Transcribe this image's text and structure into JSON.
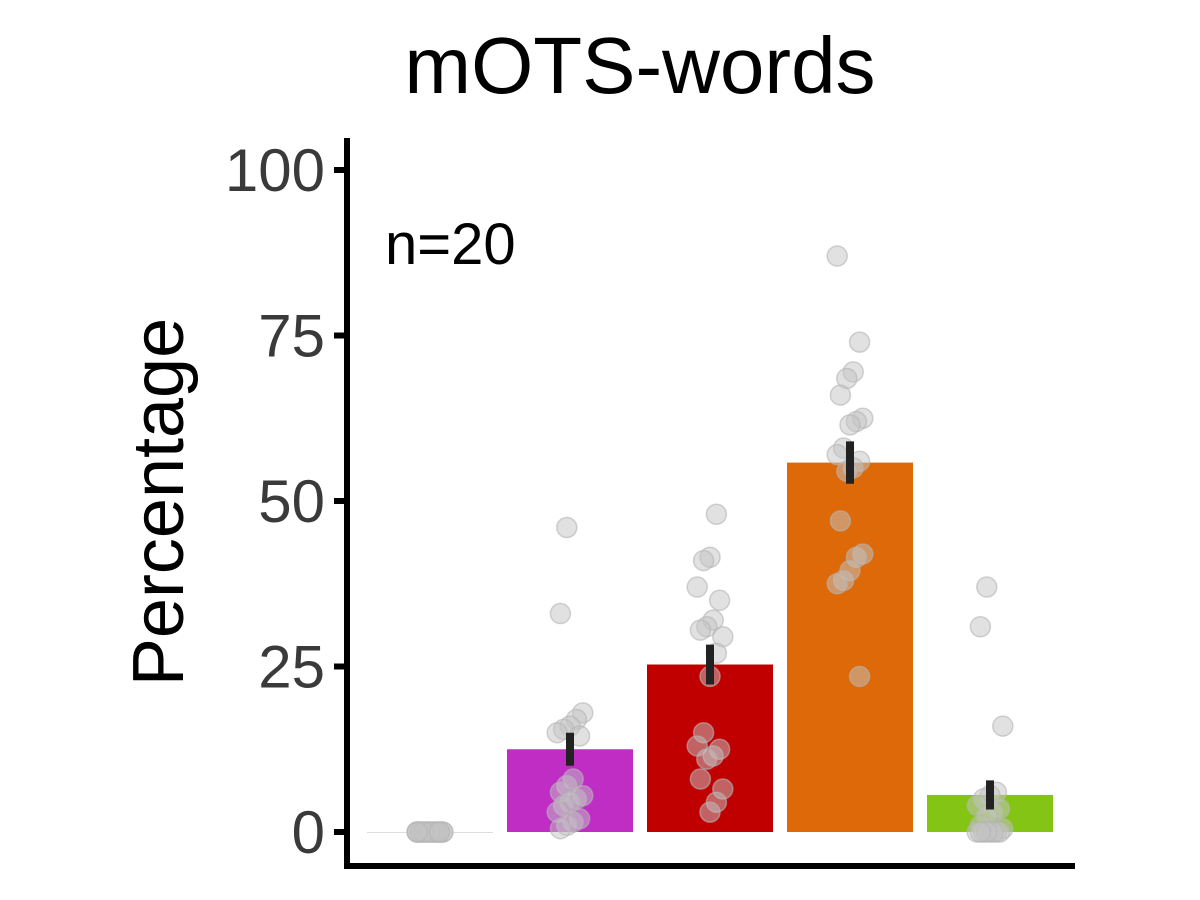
{
  "chart_data": {
    "type": "bar",
    "title": "mOTS-words",
    "ylabel": "Percentage",
    "xlabel": "",
    "ylim": [
      0,
      105
    ],
    "yticks": [
      0,
      25,
      50,
      75,
      100
    ],
    "annotation": "n=20",
    "grid": false,
    "bars": [
      {
        "value": 0,
        "error": 0,
        "color": "#c8c8c8",
        "points": [
          0,
          0,
          0,
          0,
          0,
          0,
          0,
          0,
          0,
          0,
          0,
          0,
          0,
          0,
          0,
          0,
          0,
          0,
          0,
          0
        ]
      },
      {
        "value": 12.5,
        "error": 2.5,
        "color": "#bf2dc4",
        "points": [
          46,
          33,
          18,
          17,
          16,
          15.5,
          15,
          14.5,
          8,
          7,
          6,
          5.5,
          5,
          4.5,
          4,
          3,
          2,
          1.5,
          1,
          0.5
        ]
      },
      {
        "value": 25.3,
        "error": 3.0,
        "color": "#c00000",
        "points": [
          48,
          41.5,
          41,
          37,
          35,
          32,
          31,
          30.5,
          29.5,
          27,
          23.5,
          15,
          13,
          12.5,
          11.5,
          11,
          8,
          6.5,
          4.5,
          3
        ]
      },
      {
        "value": 55.8,
        "error": 3.2,
        "color": "#de6908",
        "points": [
          87,
          74,
          69.5,
          68.5,
          66,
          62.5,
          62,
          61.5,
          58,
          57,
          56,
          55,
          54.5,
          47,
          42,
          41.5,
          39.5,
          38,
          37.5,
          23.5
        ]
      },
      {
        "value": 5.6,
        "error": 2.2,
        "color": "#84c414",
        "points": [
          37,
          31,
          16,
          6,
          5.5,
          5,
          4,
          3.5,
          3,
          2.5,
          1,
          0.5,
          0,
          0,
          0,
          0,
          0,
          0,
          0,
          0
        ]
      }
    ]
  }
}
